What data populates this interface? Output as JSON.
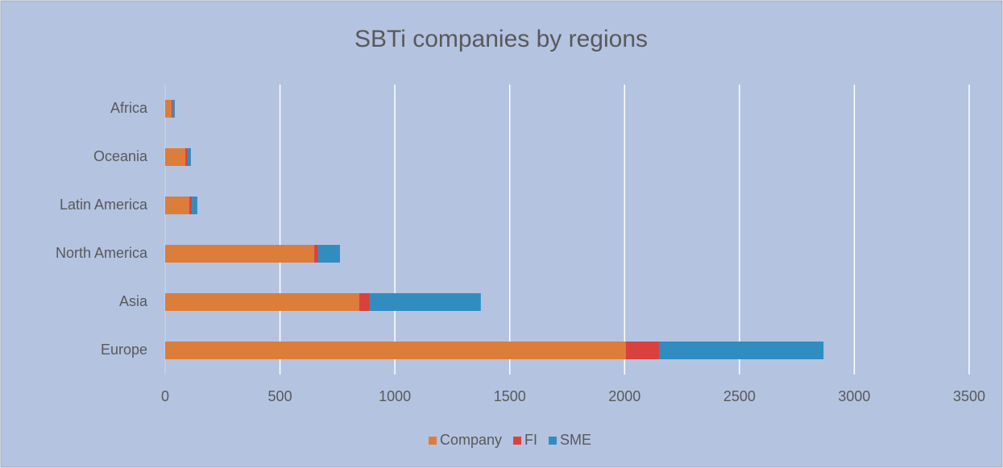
{
  "chart_data": {
    "type": "stacked_barh",
    "title": "SBTi companies by regions",
    "categories": [
      "Africa",
      "Oceania",
      "Latin America",
      "North America",
      "Asia",
      "Europe"
    ],
    "series": [
      {
        "name": "Company",
        "color": "#dd7d3a",
        "values": [
          28,
          88,
          105,
          649,
          845,
          2005
        ]
      },
      {
        "name": "FI",
        "color": "#d9413f",
        "values": [
          4,
          10,
          11,
          17,
          46,
          145
        ]
      },
      {
        "name": "SME",
        "color": "#318dc0",
        "values": [
          10,
          14,
          24,
          95,
          483,
          716
        ]
      }
    ],
    "xlim": [
      0,
      3500
    ],
    "xticks": [
      0,
      500,
      1000,
      1500,
      2000,
      2500,
      3000,
      3500
    ],
    "grid": true,
    "legend": "bottom"
  }
}
